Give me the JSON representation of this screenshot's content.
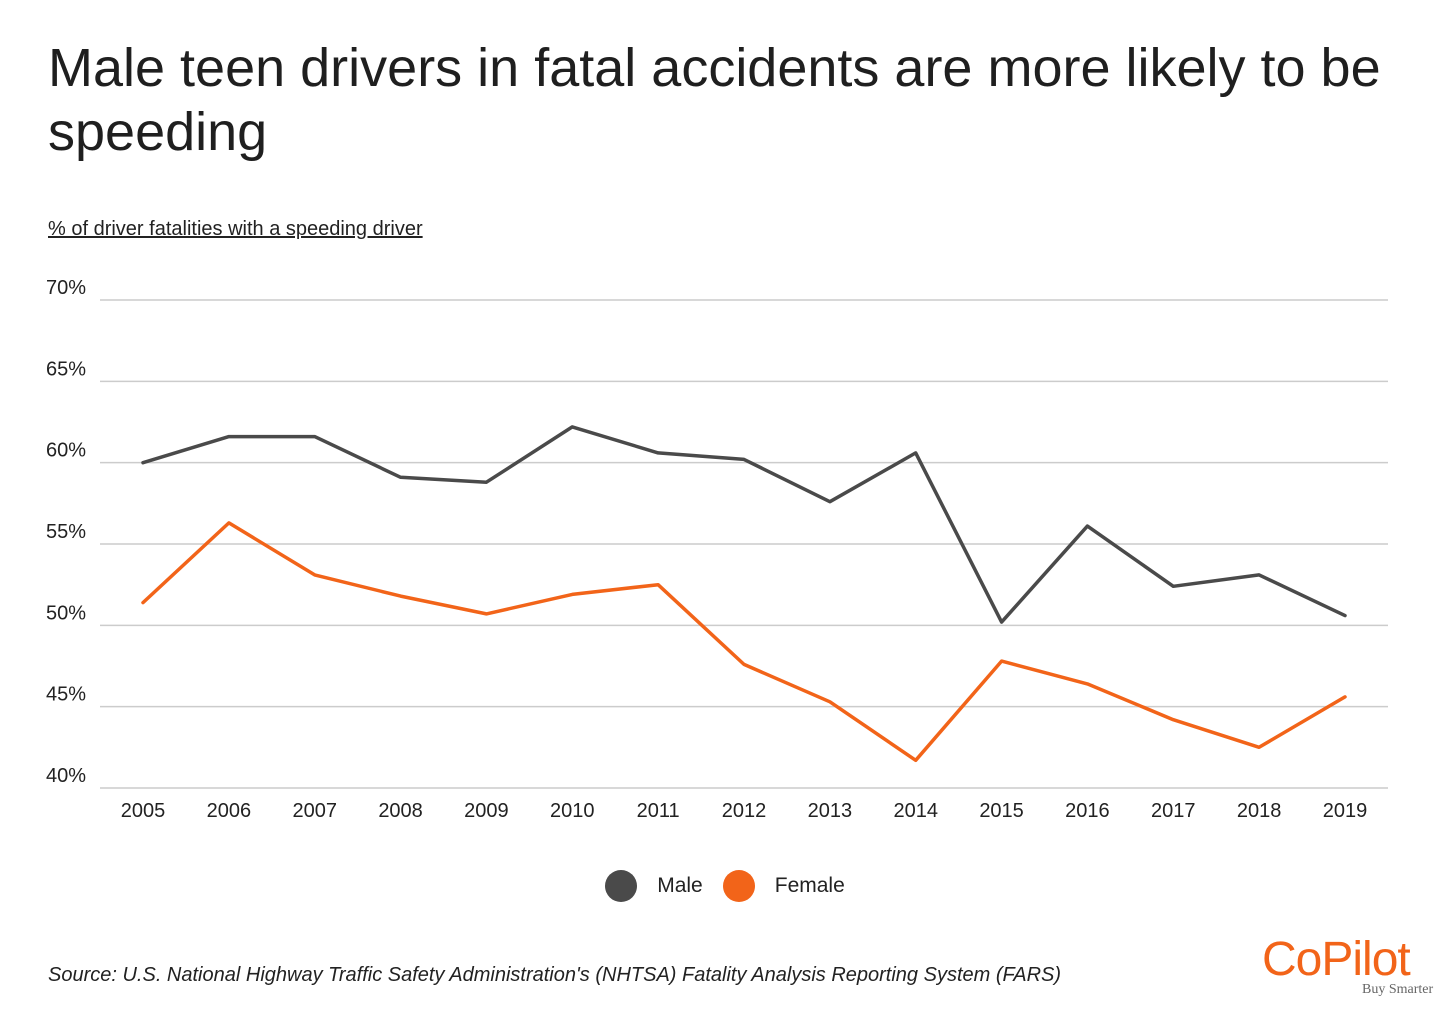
{
  "title": "Male teen drivers in fatal accidents are more likely to be speeding",
  "subtitle": "% of driver fatalities with a speeding driver",
  "source": "Source:  U.S. National Highway Traffic Safety Administration's (NHTSA) Fatality Analysis Reporting System (FARS)",
  "logo": {
    "word": "CoPilot",
    "tagline": "Buy Smarter"
  },
  "colors": {
    "male": "#4a4a4a",
    "female": "#f26419",
    "grid": "#cccccc",
    "logo": "#f26419"
  },
  "chart_data": {
    "type": "line",
    "title": "Male teen drivers in fatal accidents are more likely to be speeding",
    "ylabel": "% of driver fatalities with a speeding driver",
    "xlabel": "",
    "ylim": [
      40,
      70
    ],
    "yticks": [
      70,
      65,
      60,
      55,
      50,
      45,
      40
    ],
    "ytick_labels": [
      "70%",
      "65%",
      "60%",
      "55%",
      "50%",
      "45%",
      "40%"
    ],
    "grid": true,
    "legend_position": "bottom-center",
    "categories": [
      "2005",
      "2006",
      "2007",
      "2008",
      "2009",
      "2010",
      "2011",
      "2012",
      "2013",
      "2014",
      "2015",
      "2016",
      "2017",
      "2018",
      "2019"
    ],
    "series": [
      {
        "name": "Male",
        "values": [
          60.0,
          61.6,
          61.6,
          59.1,
          58.8,
          62.2,
          60.6,
          60.2,
          57.6,
          60.6,
          50.2,
          56.1,
          52.4,
          53.1,
          50.6
        ]
      },
      {
        "name": "Female",
        "values": [
          51.4,
          56.3,
          53.1,
          51.8,
          50.7,
          51.9,
          52.5,
          47.6,
          45.3,
          41.7,
          47.8,
          46.4,
          44.2,
          42.5,
          45.6
        ]
      }
    ]
  }
}
